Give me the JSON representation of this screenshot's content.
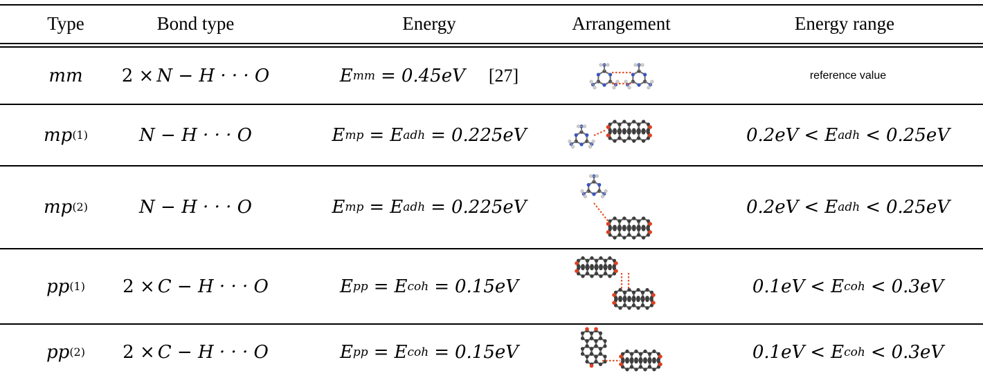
{
  "table": {
    "headers": [
      "Type",
      "Bond type",
      "Energy",
      "Arrangement",
      "Energy range"
    ],
    "rows": [
      {
        "type": {
          "base": "mm",
          "sup": ""
        },
        "bond": {
          "prefix": "2 ×",
          "text": "N − H · · · O"
        },
        "energy": {
          "lhs": "E",
          "lhs_sub": "mm",
          "mid": "",
          "mid_sub": "",
          "value": "0.45eV",
          "cite": "[27]"
        },
        "arrangement_icon": "melamine-dimer-molecule-icon",
        "range": {
          "plain": "reference value"
        }
      },
      {
        "type": {
          "base": "mp",
          "sup": "(1)"
        },
        "bond": {
          "prefix": "",
          "text": "N − H · · · O"
        },
        "energy": {
          "lhs": "E",
          "lhs_sub": "mp",
          "mid": "E",
          "mid_sub": "adh",
          "value": "0.225eV",
          "cite": ""
        },
        "arrangement_icon": "melamine-ptcda-molecule-icon",
        "range": {
          "low": "0.2eV",
          "var": "E",
          "var_sub": "adh",
          "high": "0.25eV"
        }
      },
      {
        "type": {
          "base": "mp",
          "sup": "(2)"
        },
        "bond": {
          "prefix": "",
          "text": "N − H · · · O"
        },
        "energy": {
          "lhs": "E",
          "lhs_sub": "mp",
          "mid": "E",
          "mid_sub": "adh",
          "value": "0.225eV",
          "cite": ""
        },
        "arrangement_icon": "melamine-ptcda-diagonal-molecule-icon",
        "range": {
          "low": "0.2eV",
          "var": "E",
          "var_sub": "adh",
          "high": "0.25eV"
        }
      },
      {
        "type": {
          "base": "pp",
          "sup": "(1)"
        },
        "bond": {
          "prefix": "2 ×",
          "text": "C − H · · · O"
        },
        "energy": {
          "lhs": "E",
          "lhs_sub": "pp",
          "mid": "E",
          "mid_sub": "coh",
          "value": "0.15eV",
          "cite": ""
        },
        "arrangement_icon": "ptcda-dimer-stacked-molecule-icon",
        "range": {
          "low": "0.1eV",
          "var": "E",
          "var_sub": "coh",
          "high": "0.3eV"
        }
      },
      {
        "type": {
          "base": "pp",
          "sup": "(2)"
        },
        "bond": {
          "prefix": "2 ×",
          "text": "C − H · · · O"
        },
        "energy": {
          "lhs": "E",
          "lhs_sub": "pp",
          "mid": "E",
          "mid_sub": "coh",
          "value": "0.15eV",
          "cite": ""
        },
        "arrangement_icon": "ptcda-dimer-perpendicular-molecule-icon",
        "range": {
          "low": "0.1eV",
          "var": "E",
          "var_sub": "coh",
          "high": "0.3eV"
        }
      }
    ]
  }
}
